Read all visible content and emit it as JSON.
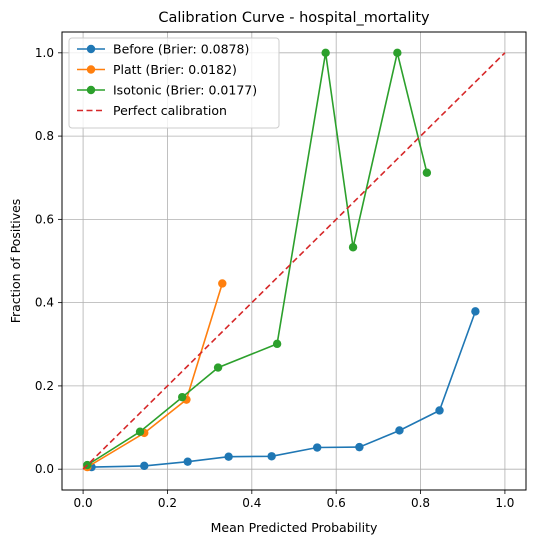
{
  "chart_data": {
    "type": "line",
    "title": "Calibration Curve - hospital_mortality",
    "xlabel": "Mean Predicted Probability",
    "ylabel": "Fraction of Positives",
    "xlim": [
      -0.05,
      1.05
    ],
    "ylim": [
      -0.05,
      1.05
    ],
    "xticks": [
      "0.0",
      "0.2",
      "0.4",
      "0.6",
      "0.8",
      "1.0"
    ],
    "yticks": [
      "0.0",
      "0.2",
      "0.4",
      "0.6",
      "0.8",
      "1.0"
    ],
    "grid": true,
    "legend_position": "top-left",
    "series": [
      {
        "name": "Before (Brier: 0.0878)",
        "color": "#1f77b4",
        "marker": "circle",
        "x": [
          0.02,
          0.145,
          0.248,
          0.345,
          0.447,
          0.555,
          0.655,
          0.75,
          0.845,
          0.93
        ],
        "y": [
          0.005,
          0.008,
          0.018,
          0.03,
          0.031,
          0.052,
          0.053,
          0.093,
          0.141,
          0.379
        ]
      },
      {
        "name": "Platt (Brier: 0.0182)",
        "color": "#ff7f0e",
        "marker": "circle",
        "x": [
          0.01,
          0.145,
          0.245,
          0.33
        ],
        "y": [
          0.005,
          0.087,
          0.167,
          0.446
        ]
      },
      {
        "name": "Isotonic (Brier: 0.0177)",
        "color": "#2ca02c",
        "marker": "circle",
        "x": [
          0.01,
          0.135,
          0.235,
          0.32,
          0.46,
          0.575,
          0.64,
          0.745,
          0.815
        ],
        "y": [
          0.01,
          0.09,
          0.173,
          0.244,
          0.301,
          1.0,
          0.533,
          1.0,
          0.712
        ]
      },
      {
        "name": "Perfect calibration",
        "color": "#d62728",
        "dashed": true,
        "marker": "none",
        "x": [
          0,
          1
        ],
        "y": [
          0,
          1
        ]
      }
    ]
  }
}
